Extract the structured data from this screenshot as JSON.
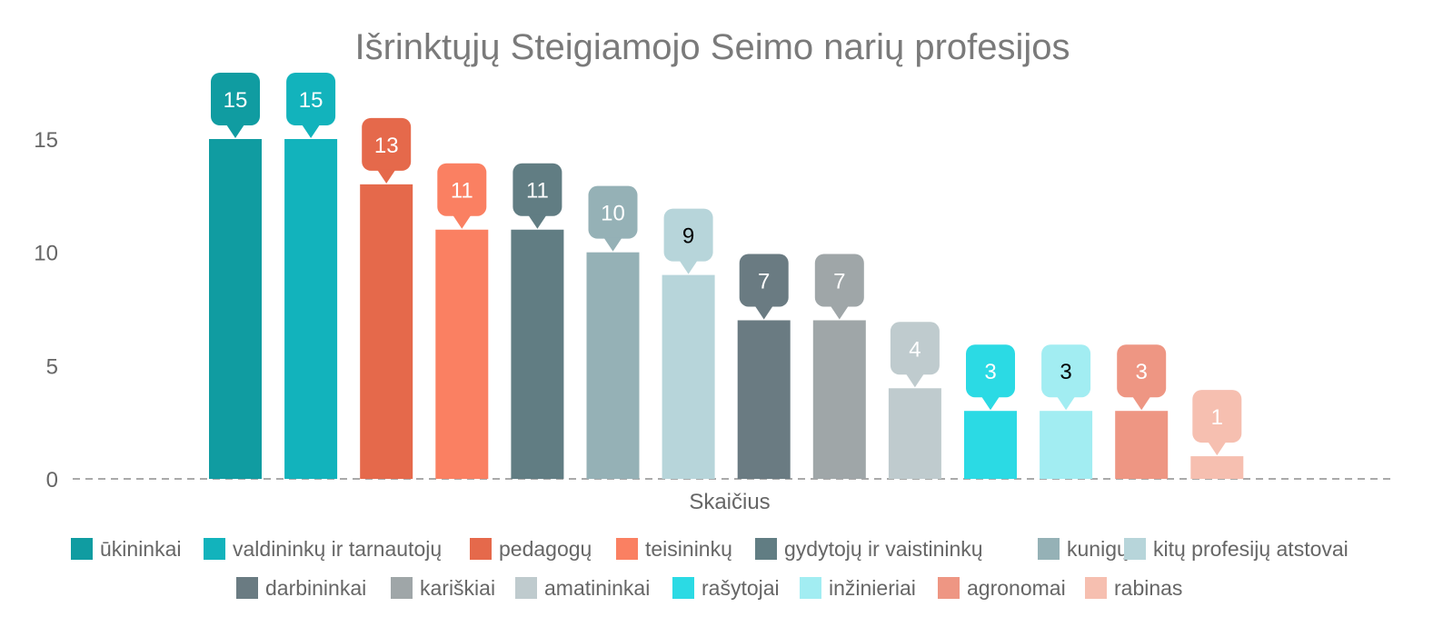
{
  "chart_data": {
    "type": "bar",
    "title": "Išrinktųjų Steigiamojo Seimo narių profesijos",
    "xlabel": "Skaičius",
    "ylabel": "",
    "ylim": [
      0,
      15
    ],
    "yticks": [
      0,
      5,
      10,
      15
    ],
    "category": "Skaičius",
    "grid": false,
    "legend_position": "bottom",
    "series": [
      {
        "name": "ūkininkai",
        "value": 15,
        "color": "#109ca1",
        "label_color": "#ffffff"
      },
      {
        "name": "valdininkų ir tarnautojų",
        "value": 15,
        "color": "#12b3bc",
        "label_color": "#ffffff"
      },
      {
        "name": "pedagogų",
        "value": 13,
        "color": "#e5694b",
        "label_color": "#ffffff"
      },
      {
        "name": "teisininkų",
        "value": 11,
        "color": "#fa8062",
        "label_color": "#ffffff"
      },
      {
        "name": "gydytojų ir vaistininkų",
        "value": 11,
        "color": "#617d83",
        "label_color": "#ffffff"
      },
      {
        "name": "kunigų",
        "value": 10,
        "color": "#95b1b6",
        "label_color": "#ffffff"
      },
      {
        "name": "kitų profesijų atstovai",
        "value": 9,
        "color": "#b7d5da",
        "label_color": "#000000"
      },
      {
        "name": "darbininkai",
        "value": 7,
        "color": "#6a7b82",
        "label_color": "#ffffff"
      },
      {
        "name": "kariškiai",
        "value": 7,
        "color": "#9fa6a8",
        "label_color": "#ffffff"
      },
      {
        "name": "amatininkai",
        "value": 4,
        "color": "#bfcbce",
        "label_color": "#ffffff"
      },
      {
        "name": "rašytojai",
        "value": 3,
        "color": "#2bdae4",
        "label_color": "#ffffff"
      },
      {
        "name": "inžinieriai",
        "value": 3,
        "color": "#a2edf2",
        "label_color": "#000000"
      },
      {
        "name": "agronomai",
        "value": 3,
        "color": "#ee9683",
        "label_color": "#ffffff"
      },
      {
        "name": "rabinas",
        "value": 1,
        "color": "#f6bfb0",
        "label_color": "#ffffff"
      }
    ]
  }
}
